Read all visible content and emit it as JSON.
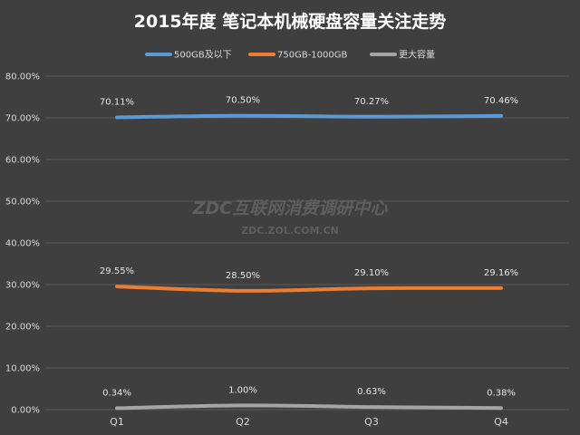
{
  "chart_data": {
    "type": "line",
    "title": "2015年度  笔记本机械硬盘容量关注走势",
    "categories": [
      "Q1",
      "Q2",
      "Q3",
      "Q4"
    ],
    "ylim": [
      0,
      80
    ],
    "yticks": [
      "0.00%",
      "10.00%",
      "20.00%",
      "30.00%",
      "40.00%",
      "50.00%",
      "60.00%",
      "70.00%",
      "80.00%"
    ],
    "grid": true,
    "legend_position": "top",
    "series": [
      {
        "name": "500GB及以下",
        "color": "#5b9bd5",
        "values": [
          70.11,
          70.5,
          70.27,
          70.46
        ],
        "labels": [
          "70.11%",
          "70.50%",
          "70.27%",
          "70.46%"
        ]
      },
      {
        "name": "750GB-1000GB",
        "color": "#ed7d31",
        "values": [
          29.55,
          28.5,
          29.1,
          29.16
        ],
        "labels": [
          "29.55%",
          "28.50%",
          "29.10%",
          "29.16%"
        ]
      },
      {
        "name": "更大容量",
        "color": "#a5a5a5",
        "values": [
          0.34,
          1.0,
          0.63,
          0.38
        ],
        "labels": [
          "0.34%",
          "1.00%",
          "0.63%",
          "0.38%"
        ]
      }
    ]
  },
  "watermark": {
    "line1": "ZDC互联网消费调研中心",
    "line2": "ZDC.ZOL.COM.CN"
  }
}
